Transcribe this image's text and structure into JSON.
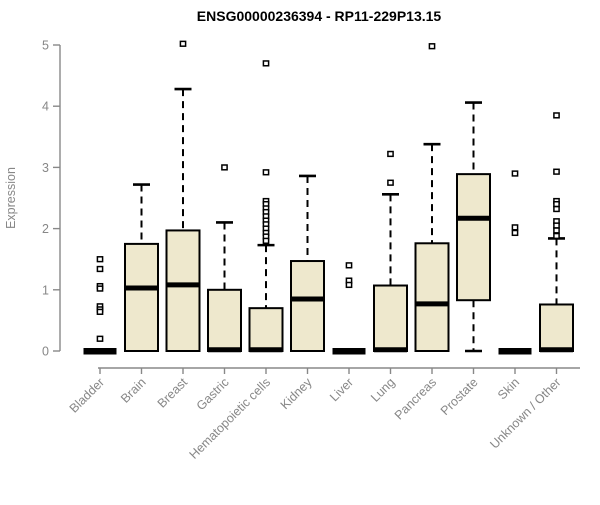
{
  "page": {
    "background": "#ffffff"
  },
  "chart_data": {
    "type": "boxplot",
    "title": "ENSG00000236394 - RP11-229P13.15",
    "ylabel": "Expression",
    "xlabel": "",
    "ylim": [
      0,
      5
    ],
    "yticks": [
      0,
      1,
      2,
      3,
      4,
      5
    ],
    "grid": false,
    "legend": false,
    "categories": [
      "Bladder",
      "Brain",
      "Breast",
      "Gastric",
      "Hematopoietic cells",
      "Kidney",
      "Liver",
      "Lung",
      "Pancreas",
      "Prostate",
      "Skin",
      "Unknown / Other"
    ],
    "boxes": [
      {
        "category": "Bladder",
        "low": 0,
        "q1": 0,
        "median": 0,
        "q3": 0,
        "high": 0,
        "outliers": [
          1.5,
          1.34,
          1.06,
          1.02,
          0.73,
          0.68,
          0.64,
          0.2
        ]
      },
      {
        "category": "Brain",
        "low": 0,
        "q1": 0,
        "median": 1.03,
        "q3": 1.75,
        "high": 2.72,
        "outliers": []
      },
      {
        "category": "Breast",
        "low": 0,
        "q1": 0,
        "median": 1.08,
        "q3": 1.97,
        "high": 4.28,
        "outliers": [
          5.02
        ]
      },
      {
        "category": "Gastric",
        "low": 0,
        "q1": 0,
        "median": 0.02,
        "q3": 1.0,
        "high": 2.1,
        "outliers": [
          3.0
        ]
      },
      {
        "category": "Hematopoietic cells",
        "low": 0,
        "q1": 0,
        "median": 0.02,
        "q3": 0.7,
        "high": 1.73,
        "outliers": [
          4.7,
          2.92,
          2.45,
          2.4,
          2.33,
          2.27,
          2.2,
          2.13,
          2.07,
          2.0,
          1.93,
          1.87,
          1.8
        ]
      },
      {
        "category": "Kidney",
        "low": 0,
        "q1": 0,
        "median": 0.85,
        "q3": 1.47,
        "high": 2.86,
        "outliers": []
      },
      {
        "category": "Liver",
        "low": 0,
        "q1": 0,
        "median": 0,
        "q3": 0,
        "high": 0,
        "outliers": [
          1.4,
          1.15,
          1.08
        ]
      },
      {
        "category": "Lung",
        "low": 0,
        "q1": 0,
        "median": 0.02,
        "q3": 1.07,
        "high": 2.56,
        "outliers": [
          3.22,
          2.75
        ]
      },
      {
        "category": "Pancreas",
        "low": 0,
        "q1": 0,
        "median": 0.77,
        "q3": 1.76,
        "high": 3.38,
        "outliers": [
          4.98
        ]
      },
      {
        "category": "Prostate",
        "low": 0,
        "q1": 0.83,
        "median": 2.17,
        "q3": 2.89,
        "high": 4.06,
        "outliers": []
      },
      {
        "category": "Skin",
        "low": 0,
        "q1": 0,
        "median": 0,
        "q3": 0,
        "high": 0,
        "outliers": [
          2.9,
          2.02,
          1.93
        ]
      },
      {
        "category": "Unknown / Other",
        "low": 0,
        "q1": 0,
        "median": 0.02,
        "q3": 0.76,
        "high": 1.84,
        "outliers": [
          3.85,
          2.93,
          2.45,
          2.4,
          2.32,
          2.12,
          2.05,
          1.97,
          1.88
        ]
      }
    ],
    "style": {
      "box_fill": "#EEE8CD",
      "box_border": "#000000",
      "median_color": "#000000",
      "whisker_color": "#000000",
      "whisker_style": "dashed",
      "outlier_marker": "open-square",
      "outlier_color": "#000000",
      "axis_color": "#888888",
      "tick_label_color": "#878787",
      "title_color": "#000000"
    }
  }
}
